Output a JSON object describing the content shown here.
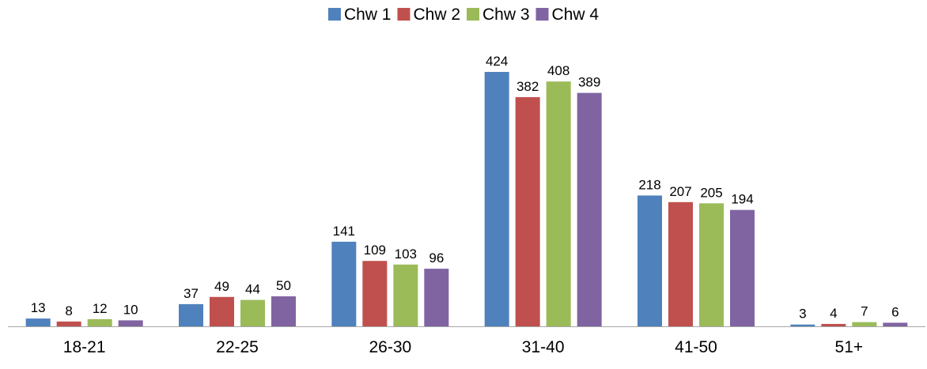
{
  "chart_data": {
    "type": "bar",
    "categories": [
      "18-21",
      "22-25",
      "26-30",
      "31-40",
      "41-50",
      "51+"
    ],
    "series": [
      {
        "name": "Chw 1",
        "color": "#4F81BD",
        "values": [
          13,
          37,
          141,
          424,
          218,
          3
        ]
      },
      {
        "name": "Chw 2",
        "color": "#C0504D",
        "values": [
          8,
          49,
          109,
          382,
          207,
          4
        ]
      },
      {
        "name": "Chw 3",
        "color": "#9BBB59",
        "values": [
          12,
          44,
          103,
          408,
          205,
          7
        ]
      },
      {
        "name": "Chw 4",
        "color": "#8064A2",
        "values": [
          10,
          50,
          96,
          389,
          194,
          6
        ]
      }
    ],
    "title": "",
    "xlabel": "",
    "ylabel": "",
    "ylim": [
      0,
      424
    ],
    "legend_position": "top-center",
    "grid": false,
    "data_labels": true,
    "axis_color": "#A6A6A6"
  }
}
